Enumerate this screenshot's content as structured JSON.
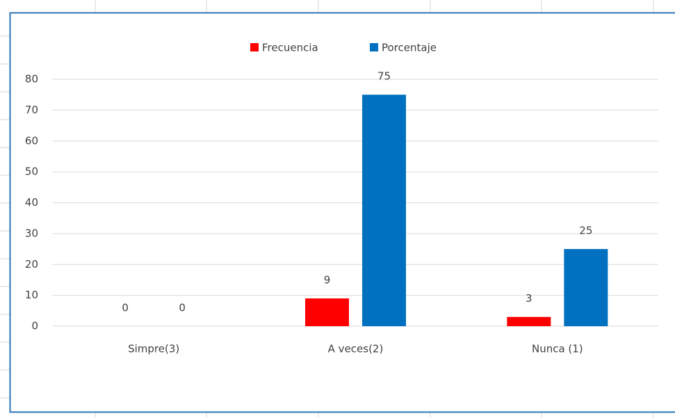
{
  "chart_data": {
    "type": "bar",
    "categories": [
      "Simpre(3)",
      "A veces(2)",
      "Nunca (1)"
    ],
    "series": [
      {
        "name": "Frecuencia",
        "color": "#ff0000",
        "values": [
          0,
          9,
          3
        ]
      },
      {
        "name": "Porcentaje",
        "color": "#0070c0",
        "values": [
          0,
          75,
          25
        ]
      }
    ],
    "ylim": [
      0,
      80
    ],
    "yticks": [
      0,
      10,
      20,
      30,
      40,
      50,
      60,
      70,
      80
    ],
    "grid": true,
    "legend": "top",
    "data_labels": true
  }
}
